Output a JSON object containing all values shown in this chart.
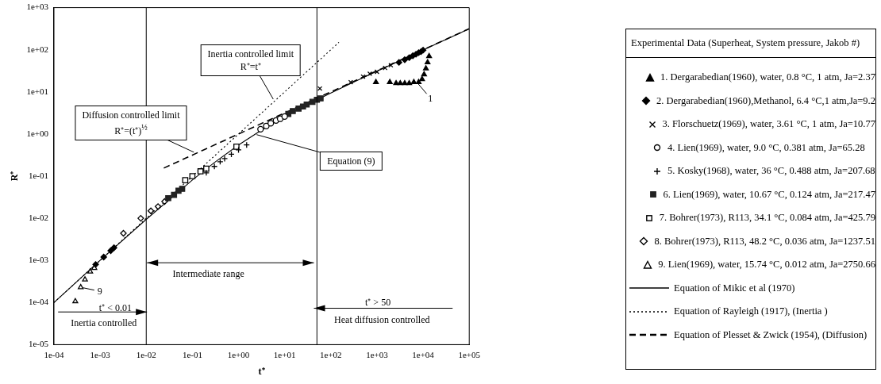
{
  "chart_data": {
    "type": "scatter",
    "xlabel": "t⁺",
    "ylabel": "R⁺",
    "log": "xy",
    "xlim": [
      0.0001,
      100000
    ],
    "ylim": [
      1e-05,
      1000
    ],
    "xticks": [
      {
        "value": 0.0001,
        "label": "1e-04"
      },
      {
        "value": 0.001,
        "label": "1e-03"
      },
      {
        "value": 0.01,
        "label": "1e-02"
      },
      {
        "value": 0.1,
        "label": "1e-01"
      },
      {
        "value": 1,
        "label": "1e+00"
      },
      {
        "value": 10,
        "label": "1e+01"
      },
      {
        "value": 100,
        "label": "1e+02"
      },
      {
        "value": 1000,
        "label": "1e+03"
      },
      {
        "value": 10000,
        "label": "1e+04"
      },
      {
        "value": 100000,
        "label": "1e+05"
      }
    ],
    "yticks": [
      {
        "value": 1e-05,
        "label": "1e-05"
      },
      {
        "value": 0.0001,
        "label": "1e-04"
      },
      {
        "value": 0.001,
        "label": "1e-03"
      },
      {
        "value": 0.01,
        "label": "1e-02"
      },
      {
        "value": 0.1,
        "label": "1e-01"
      },
      {
        "value": 1,
        "label": "1e+00"
      },
      {
        "value": 10,
        "label": "1e+01"
      },
      {
        "value": 100,
        "label": "1e+02"
      },
      {
        "value": 1000,
        "label": "1e+03"
      }
    ],
    "grid": false,
    "legend": "right",
    "legend_title": "Experimental Data (Superheat, System pressure, Jakob #)",
    "ref_lines": [
      {
        "axis": "x",
        "value": 0.01,
        "label": null,
        "color": "#000000"
      },
      {
        "axis": "x",
        "value": 50,
        "label": null,
        "color": "#000000"
      }
    ],
    "annotations": [
      {
        "text": "Inertia controlled limit\nR⁺=t⁺",
        "x": 6,
        "y": 6
      },
      {
        "text": "Diffusion controlled limit\nR⁺=(t⁺)$^{½}$",
        "x": 0.12,
        "y": 0.35
      },
      {
        "text": "Equation (9)",
        "x": 2.2,
        "y": 1
      },
      {
        "text": "1",
        "x": 7300,
        "y": 17
      },
      {
        "text": "9",
        "x": 0.00038,
        "y": 0.00023
      },
      "t⁺ < 0.01",
      "Inertia controlled",
      "Intermediate range",
      "t⁺ > 50",
      "Heat diffusion controlled"
    ],
    "series": [
      {
        "name": "1. Dergarabedian(1960), water, 0.8 °C, 1 atm, Ja=2.37",
        "type": "scatter",
        "marker": "triangle",
        "color": "#000000",
        "x": [
          950,
          1900,
          2600,
          3200,
          4000,
          5000,
          6300,
          8000,
          9500,
          10500,
          11500,
          12500,
          13500
        ],
        "values": [
          17,
          17,
          16,
          16,
          16,
          16,
          17,
          17,
          20,
          26,
          36,
          50,
          70
        ]
      },
      {
        "name": "2. Dergarabedian(1960),Methanol, 6.4 °C,1 atm,Ja=9.2",
        "type": "scatter",
        "marker": "diamond",
        "color": "#000000",
        "x": [
          0.0008,
          0.0012,
          0.0017,
          0.002,
          3000,
          4000,
          5000,
          6000,
          7000,
          8000,
          9000,
          10000
        ],
        "values": [
          0.0008,
          0.0012,
          0.0017,
          0.002,
          50,
          58,
          65,
          72,
          78,
          85,
          90,
          98
        ]
      },
      {
        "name": "3. Florschuetz(1969), water, 3.61 °C, 1 atm, Ja=10.77",
        "type": "scatter",
        "marker": "cross",
        "color": "#000000",
        "x": [
          58,
          270,
          500,
          700,
          1000,
          1500,
          2000
        ],
        "values": [
          12,
          17,
          23,
          27,
          30,
          37,
          43
        ]
      },
      {
        "name": "4. Lien(1969), water, 9.0 °C, 0.381 atm, Ja=65.28",
        "type": "scatter",
        "marker": "circle",
        "color": "#000000",
        "x": [
          3,
          4,
          5,
          6.5,
          8,
          10
        ],
        "values": [
          1.3,
          1.55,
          1.8,
          2.1,
          2.3,
          2.6
        ]
      },
      {
        "name": "5. Kosky(1968), water, 36 °C, 0.488 atm, Ja=207.68",
        "type": "scatter",
        "marker": "cross",
        "color": "#000000",
        "x": [
          0.2,
          0.3,
          0.4,
          0.5,
          0.7,
          1,
          1.5
        ],
        "values": [
          0.12,
          0.17,
          0.22,
          0.26,
          0.33,
          0.42,
          0.55
        ]
      },
      {
        "name": "6. Lien(1969), water, 10.67 °C, 0.124 atm, Ja=217.47",
        "type": "scatter",
        "marker": "square",
        "color": "#222222",
        "x": [
          0.03,
          0.04,
          0.05,
          0.06,
          12,
          15,
          20,
          25,
          30,
          40,
          50,
          60
        ],
        "values": [
          0.03,
          0.036,
          0.045,
          0.05,
          3,
          3.5,
          4,
          4.5,
          5,
          5.8,
          6.5,
          7
        ]
      },
      {
        "name": "7. Bohrer(1973), R113, 34.1 °C, 0.084 atm, Ja=425.79",
        "type": "scatter",
        "marker": "square",
        "color": "#000000",
        "x": [
          0.07,
          0.1,
          0.15,
          0.2,
          0.9
        ],
        "values": [
          0.08,
          0.1,
          0.13,
          0.15,
          0.5
        ]
      },
      {
        "name": "8. Bohrer(1973), R113, 48.2 °C, 0.036 atm, Ja=1237.51",
        "type": "scatter",
        "marker": "diamond",
        "color": "#000000",
        "x": [
          0.0032,
          0.0076,
          0.0126,
          0.018,
          0.025
        ],
        "values": [
          0.0044,
          0.01,
          0.015,
          0.019,
          0.025
        ]
      },
      {
        "name": "9. Lien(1969),  water, 15.74 °C, 0.012 atm, Ja=2750.66",
        "type": "scatter",
        "marker": "triangle",
        "color": "#000000",
        "x": [
          0.00029,
          0.00038,
          0.00047,
          0.00061,
          0.00075
        ],
        "values": [
          0.000107,
          0.00023,
          0.00035,
          0.00054,
          0.00066
        ]
      },
      {
        "name": "Equation of Mikic et al (1970)",
        "type": "line",
        "line_style": "solid",
        "color": "#000000",
        "x": [
          0.0001,
          0.001,
          0.01,
          0.1,
          0.3,
          1,
          3,
          10,
          30,
          100,
          300,
          1000,
          3000,
          10000,
          30000,
          100000
        ],
        "values": [
          0.0001,
          0.001,
          0.0094,
          0.081,
          0.21,
          0.55,
          1.2,
          2.6,
          4.9,
          9.4,
          16.6,
          30.9,
          54,
          99,
          172,
          316
        ]
      },
      {
        "name": "Equation of Rayleigh (1917), (Inertia )",
        "type": "line",
        "line_style": "dotted",
        "color": "#000000",
        "x": [
          0.0001,
          150
        ],
        "values": [
          0.0001,
          150
        ]
      },
      {
        "name": "Equation of Plesset & Zwick (1954), (Diffusion)",
        "type": "line",
        "line_style": "dashed",
        "color": "#000000",
        "x": [
          0.024,
          100000
        ],
        "values": [
          0.155,
          316
        ]
      }
    ]
  }
}
